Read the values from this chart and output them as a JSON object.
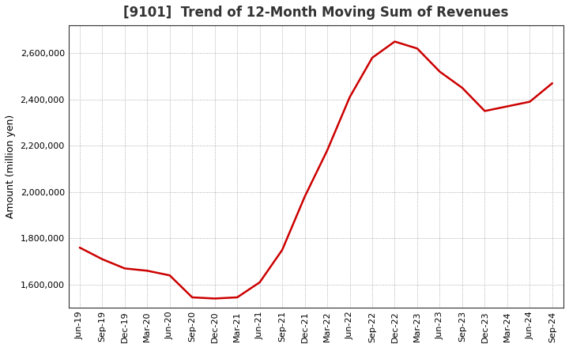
{
  "title": "[9101]  Trend of 12-Month Moving Sum of Revenues",
  "ylabel": "Amount (million yen)",
  "line_color": "#cc0000",
  "background_color": "#ffffff",
  "plot_bg_color": "#ffffff",
  "grid_color": "#999999",
  "x_labels": [
    "Jun-19",
    "Sep-19",
    "Dec-19",
    "Mar-20",
    "Jun-20",
    "Sep-20",
    "Dec-20",
    "Mar-21",
    "Jun-21",
    "Sep-21",
    "Dec-21",
    "Mar-22",
    "Jun-22",
    "Sep-22",
    "Dec-22",
    "Mar-23",
    "Jun-23",
    "Sep-23",
    "Dec-23",
    "Mar-24",
    "Jun-24",
    "Sep-24"
  ],
  "values": [
    1760000,
    1710000,
    1670000,
    1660000,
    1640000,
    1545000,
    1540000,
    1545000,
    1610000,
    1750000,
    1980000,
    2180000,
    2410000,
    2580000,
    2650000,
    2620000,
    2520000,
    2450000,
    2350000,
    2370000,
    2390000,
    2470000
  ],
  "ylim_min": 1500000,
  "ylim_max": 2720000,
  "yticks": [
    1600000,
    1800000,
    2000000,
    2200000,
    2400000,
    2600000
  ],
  "title_fontsize": 12,
  "tick_fontsize": 8,
  "ylabel_fontsize": 9
}
